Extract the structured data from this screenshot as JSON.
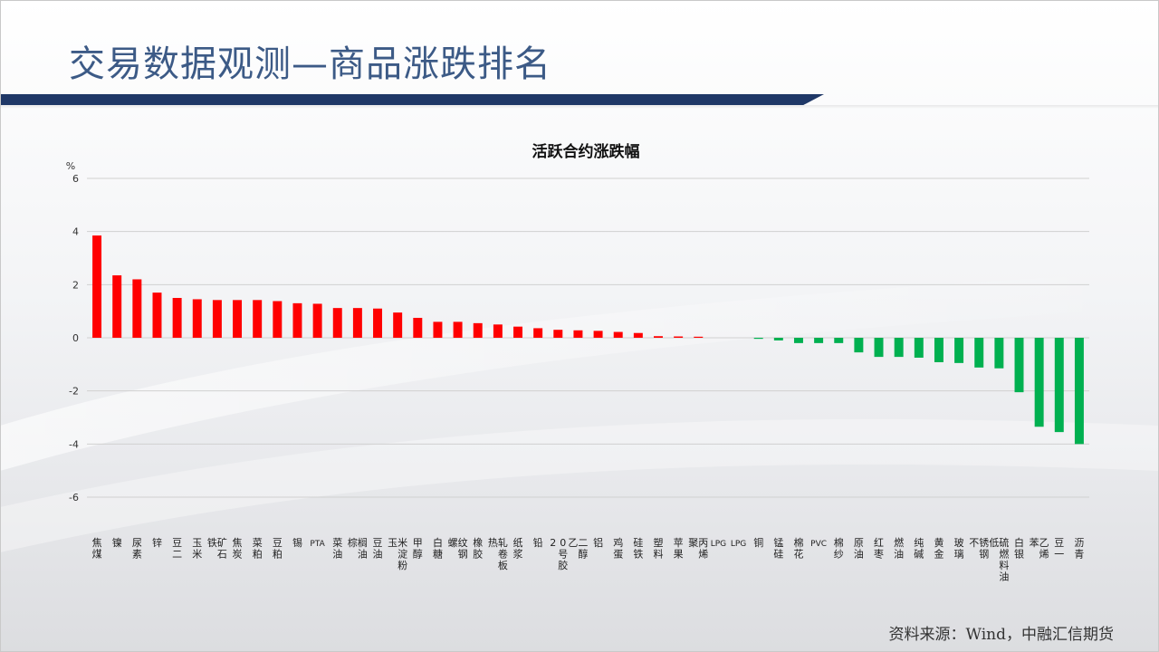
{
  "header": {
    "title": "交易数据观测—商品涨跌排名"
  },
  "footer": {
    "source": "资料来源：Wind，中融汇信期货"
  },
  "colors": {
    "up": "#ff0000",
    "down": "#00b050",
    "title": "#3c5a86",
    "band": "#1f3867"
  },
  "chart_data": {
    "type": "bar",
    "title": "活跃合约涨跌幅",
    "ylabel": "%",
    "ylim": [
      -6,
      6
    ],
    "yticks": [
      6,
      4,
      2,
      0,
      -2,
      -4,
      -6
    ],
    "grid": true,
    "categories": [
      "焦煤",
      "镍",
      "尿素",
      "锌",
      "豆二",
      "玉米",
      "铁矿石",
      "焦炭",
      "菜粕",
      "豆粕",
      "锡",
      "PTA",
      "菜油",
      "棕榈油",
      "豆油",
      "玉米淀粉",
      "甲醇",
      "白糖",
      "螺纹钢",
      "橡胶",
      "热轧卷板",
      "纸浆",
      "铅",
      "20号胶",
      "乙二醇",
      "铝",
      "鸡蛋",
      "硅铁",
      "塑料",
      "苹果",
      "聚丙烯",
      "LPG",
      "LPG",
      "铜",
      "锰硅",
      "棉花",
      "PVC",
      "棉纱",
      "原油",
      "红枣",
      "燃油",
      "纯碱",
      "黄金",
      "玻璃",
      "不锈钢",
      "低硫燃料油",
      "白银",
      "苯乙烯",
      "豆一",
      "沥青"
    ],
    "values": [
      3.85,
      2.35,
      2.2,
      1.7,
      1.5,
      1.45,
      1.42,
      1.42,
      1.42,
      1.38,
      1.3,
      1.28,
      1.12,
      1.12,
      1.1,
      0.95,
      0.75,
      0.6,
      0.6,
      0.55,
      0.5,
      0.42,
      0.36,
      0.3,
      0.28,
      0.26,
      0.22,
      0.18,
      0.06,
      0.05,
      0.04,
      0.0,
      0.0,
      -0.04,
      -0.1,
      -0.2,
      -0.2,
      -0.2,
      -0.55,
      -0.72,
      -0.72,
      -0.75,
      -0.92,
      -0.95,
      -1.12,
      -1.15,
      -2.05,
      -3.35,
      -3.55,
      -4.0
    ]
  }
}
